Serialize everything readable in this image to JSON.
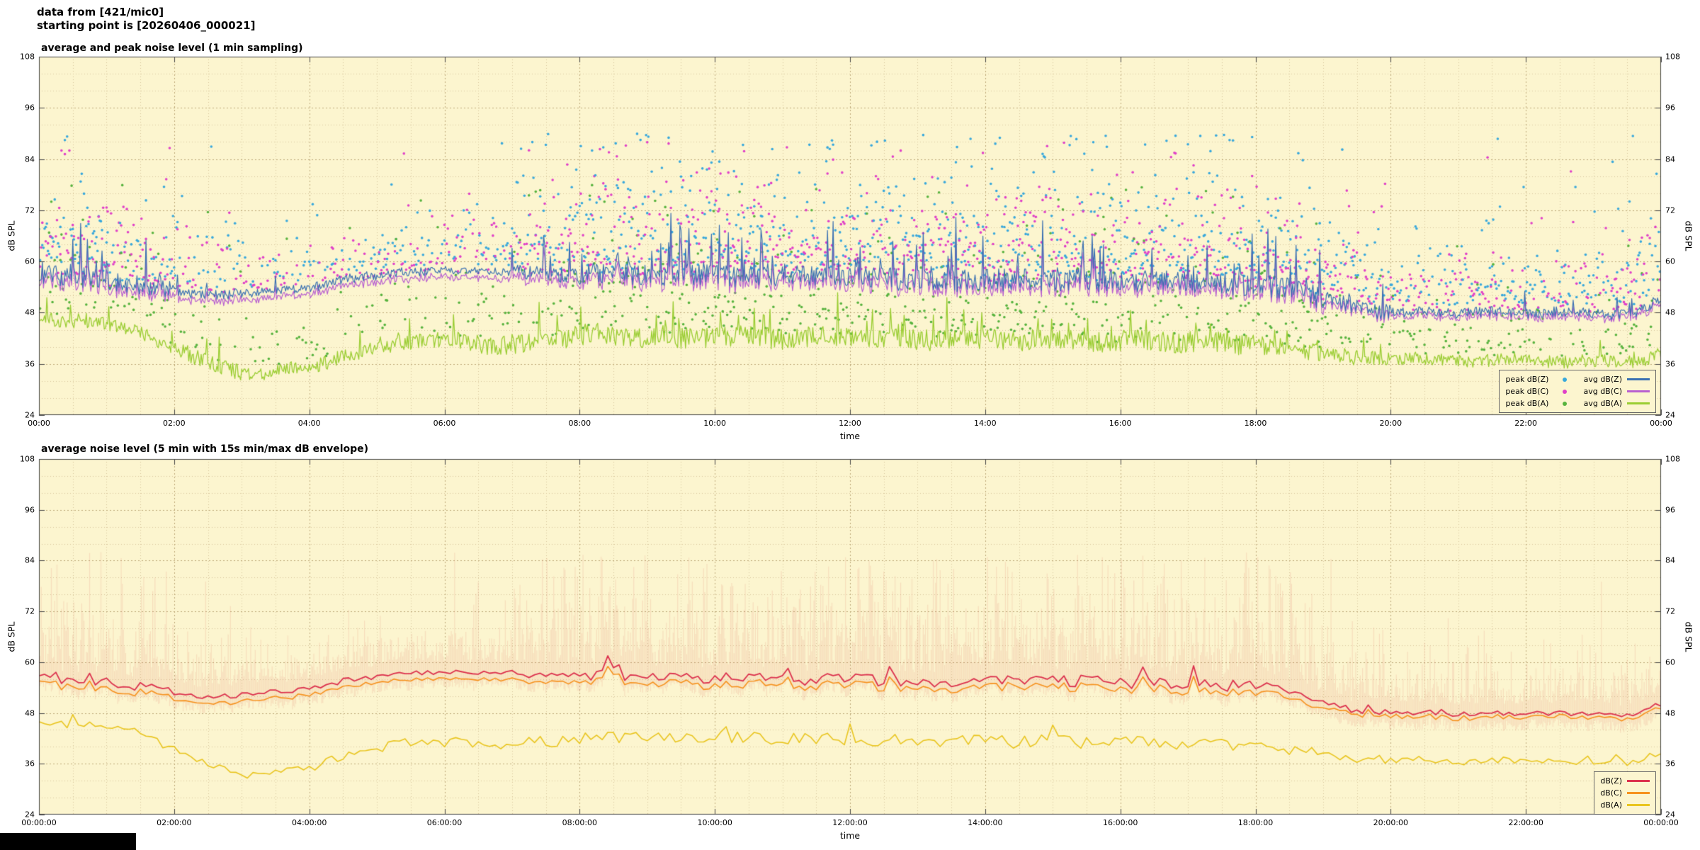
{
  "header": {
    "line1": "data from [421/mic0]",
    "line2": "starting point is [20260406_000021]"
  },
  "colors": {
    "plot_bg": "#fcf5cf",
    "grid_minor": "#d8c69c",
    "grid_major": "#bca878",
    "axis": "#444444",
    "peak_z": "#38a8dc",
    "avg_z": "#3a70b2",
    "peak_c": "#e040c8",
    "avg_c": "#b85fd0",
    "peak_a": "#57b33e",
    "avg_a": "#9acd32",
    "bz": "#dc324e",
    "bc": "#f6921e",
    "ba": "#e9c51f",
    "envelope": "rgba(228,120,104,0.18)"
  },
  "chart_data": {
    "x_axis": {
      "min_hours": 0,
      "max_hours": 24,
      "tick_interval_hours": 2
    },
    "ylim": [
      24,
      108
    ],
    "y_tick_labels": [
      "24",
      "36",
      "48",
      "60",
      "72",
      "84",
      "96",
      "108"
    ],
    "baseline_step_hours": 0.25,
    "baselines": {
      "avg_dBZ": [
        57,
        56,
        55.5,
        56,
        55,
        54.5,
        54,
        53,
        52.5,
        52,
        51.8,
        52,
        52.2,
        52.5,
        53,
        53.2,
        53.5,
        54.5,
        55.5,
        56,
        56.5,
        57,
        57.2,
        57.4,
        57.5,
        57.6,
        57.5,
        57.4,
        57.2,
        56.8,
        56.5,
        56.5,
        56.5,
        56.8,
        57,
        56.5,
        56,
        56.2,
        56.5,
        56.3,
        56,
        55.8,
        56,
        56.2,
        56,
        55.8,
        55.5,
        55.8,
        56,
        55.5,
        55.2,
        55,
        55.2,
        55,
        54.8,
        55,
        55.5,
        55.2,
        55,
        54.8,
        55,
        55.2,
        55,
        54.8,
        54.5,
        54.8,
        55,
        54.5,
        54.2,
        54.5,
        54.2,
        54,
        53.8,
        53.5,
        53,
        52,
        50.5,
        49.5,
        48.8,
        48.3,
        48,
        47.8,
        48,
        47.8,
        47.5,
        47.8,
        48,
        47.8,
        47.5,
        47.8,
        48,
        47.8,
        47.5,
        47.2,
        47.5,
        48.5,
        50
      ],
      "avg_dBC": [
        55.5,
        54.5,
        54,
        54.5,
        53.5,
        53,
        52.5,
        51.5,
        51,
        50.5,
        50.3,
        50.5,
        50.7,
        51,
        51.5,
        51.7,
        52,
        53,
        54,
        54.5,
        55,
        55.5,
        55.7,
        55.9,
        56,
        56.1,
        56,
        55.9,
        55.7,
        55.3,
        55,
        55,
        55,
        55.3,
        55.5,
        55,
        54.5,
        54.7,
        55,
        54.8,
        54.5,
        54.3,
        54.5,
        54.7,
        54.5,
        54.3,
        54,
        54.3,
        54.5,
        54,
        53.7,
        53.5,
        53.7,
        53.5,
        53.3,
        53.5,
        54,
        53.7,
        53.5,
        53.3,
        53.5,
        53.7,
        53.5,
        53.3,
        53,
        53.3,
        53.5,
        53,
        52.7,
        53,
        52.7,
        52.5,
        52.3,
        52,
        51.5,
        50.5,
        49,
        48.6,
        47.9,
        47.4,
        47.1,
        46.9,
        47.1,
        46.9,
        46.6,
        46.9,
        47.1,
        46.9,
        46.6,
        46.9,
        47.1,
        46.9,
        46.6,
        46.3,
        46.6,
        47.6,
        49.1
      ],
      "avg_dBA": [
        46,
        45.5,
        45,
        45.5,
        45,
        44,
        43,
        41,
        39,
        37.5,
        36,
        34.5,
        33.5,
        33,
        34,
        34.5,
        35,
        36,
        37.5,
        38.5,
        39.5,
        40.5,
        41,
        41.5,
        41,
        40.5,
        40,
        39.5,
        40,
        40.5,
        41,
        41.5,
        42,
        42.5,
        42,
        41.5,
        41.8,
        42,
        41.5,
        41.2,
        41.5,
        42,
        41.8,
        41.5,
        41.2,
        41.5,
        41.8,
        42,
        41.5,
        41,
        41.2,
        41.5,
        41,
        40.8,
        41,
        41.2,
        41.5,
        41,
        40.8,
        41,
        41.2,
        41,
        40.8,
        40.5,
        40.8,
        41,
        40.5,
        40.2,
        40.5,
        40.8,
        40.5,
        40,
        39.8,
        39.5,
        39,
        38.5,
        38,
        37.5,
        37,
        36.8,
        36.5,
        36.8,
        37,
        36.8,
        36.5,
        36.2,
        36.5,
        36.8,
        36.5,
        36.2,
        36,
        36.2,
        36.5,
        36.2,
        36,
        36.5,
        38
      ]
    },
    "noise": {
      "zc_amp": [
        2.5,
        2.2,
        1.2,
        1.0,
        1.2,
        1.0,
        0.9,
        1.8,
        2.6,
        2.6,
        2.6,
        2.6,
        2.6,
        2.6,
        2.8,
        2.8,
        2.6,
        2.6,
        2.6,
        2.2,
        1.2,
        1.2,
        1.2,
        1.4
      ],
      "zc_spike_prob": [
        0.1,
        0.08,
        0.03,
        0.02,
        0.03,
        0.02,
        0.02,
        0.1,
        0.14,
        0.14,
        0.14,
        0.14,
        0.14,
        0.14,
        0.15,
        0.15,
        0.14,
        0.14,
        0.14,
        0.08,
        0.03,
        0.03,
        0.03,
        0.04
      ],
      "zc_spike_amp": [
        11,
        10,
        5,
        4,
        5,
        4,
        4,
        10,
        13,
        13,
        13,
        13,
        13,
        13,
        14,
        14,
        13,
        13,
        13,
        9,
        4,
        4,
        4,
        5
      ],
      "a_amp": [
        1.5,
        1.5,
        1.8,
        1.5,
        1.8,
        2.2,
        2.2,
        2.5,
        2.5,
        2.5,
        2.5,
        2.5,
        2.5,
        2.5,
        2.5,
        2.5,
        2.5,
        2.5,
        2.2,
        1.8,
        1.5,
        1.5,
        1.5,
        1.5
      ],
      "a_spike_prob": [
        0.05,
        0.05,
        0.05,
        0.05,
        0.08,
        0.08,
        0.08,
        0.1,
        0.1,
        0.1,
        0.1,
        0.1,
        0.1,
        0.1,
        0.1,
        0.1,
        0.1,
        0.1,
        0.08,
        0.05,
        0.04,
        0.04,
        0.04,
        0.05
      ],
      "a_spike_amp": [
        5,
        5,
        6,
        5,
        7,
        8,
        8,
        8,
        8,
        8,
        8,
        8,
        8,
        8,
        8,
        8,
        8,
        8,
        7,
        5,
        4,
        4,
        4,
        5
      ]
    },
    "scatter": {
      "density_zc": [
        0.9,
        0.8,
        0.5,
        0.4,
        0.45,
        0.5,
        0.6,
        0.85,
        0.95,
        0.95,
        0.95,
        0.95,
        0.95,
        0.95,
        0.95,
        0.95,
        0.95,
        0.95,
        0.9,
        0.8,
        0.7,
        0.7,
        0.7,
        0.75
      ],
      "scale_zc": [
        8,
        7,
        6,
        5,
        5,
        5,
        6,
        8,
        9,
        9,
        9,
        9,
        9,
        9,
        9,
        9,
        9,
        9,
        8,
        7,
        6,
        6,
        6,
        7
      ],
      "density_a": [
        0.5,
        0.45,
        0.35,
        0.3,
        0.3,
        0.35,
        0.4,
        0.55,
        0.6,
        0.6,
        0.6,
        0.6,
        0.6,
        0.6,
        0.6,
        0.6,
        0.6,
        0.6,
        0.55,
        0.45,
        0.4,
        0.4,
        0.4,
        0.45
      ],
      "scale_a": [
        7,
        7,
        6,
        5,
        5,
        6,
        6,
        8,
        8,
        8,
        8,
        8,
        8,
        8,
        8,
        8,
        8,
        8,
        7,
        6,
        5,
        5,
        5,
        6
      ]
    },
    "envelope": {
      "scale": [
        11,
        9,
        5,
        4,
        4,
        5,
        6,
        12,
        13,
        13,
        13,
        13,
        13,
        13,
        13,
        13,
        13,
        13,
        12,
        8,
        5,
        5,
        5,
        6
      ]
    },
    "seed": 20260406,
    "charts": [
      {
        "type": "scatter+line",
        "title": "average and peak noise level (1 min sampling)",
        "xlabel": "time",
        "ylabel": "dB SPL",
        "ylabel_right": "dB SPL",
        "x_tick_labels": [
          "00:00",
          "02:00",
          "04:00",
          "06:00",
          "08:00",
          "10:00",
          "12:00",
          "14:00",
          "16:00",
          "18:00",
          "20:00",
          "22:00",
          "00:00"
        ],
        "legend_points": [
          {
            "label": "peak dB(Z)",
            "color_key": "peak_z"
          },
          {
            "label": "peak dB(C)",
            "color_key": "peak_c"
          },
          {
            "label": "peak dB(A)",
            "color_key": "peak_a"
          }
        ],
        "legend_lines": [
          {
            "label": "avg dB(Z)",
            "color_key": "avg_z"
          },
          {
            "label": "avg dB(C)",
            "color_key": "avg_c"
          },
          {
            "label": "avg dB(A)",
            "color_key": "avg_a"
          }
        ]
      },
      {
        "type": "line+envelope",
        "title": "average noise level (5 min with 15s min/max dB envelope)",
        "xlabel": "time",
        "ylabel": "dB SPL",
        "ylabel_right": "dB SPL",
        "x_tick_labels": [
          "00:00:00",
          "02:00:00",
          "04:00:00",
          "06:00:00",
          "08:00:00",
          "10:00:00",
          "12:00:00",
          "14:00:00",
          "16:00:00",
          "18:00:00",
          "20:00:00",
          "22:00:00",
          "00:00:00"
        ],
        "legend_lines": [
          {
            "label": "dB(Z)",
            "color_key": "bz"
          },
          {
            "label": "dB(C)",
            "color_key": "bc"
          },
          {
            "label": "dB(A)",
            "color_key": "ba"
          }
        ]
      }
    ]
  }
}
